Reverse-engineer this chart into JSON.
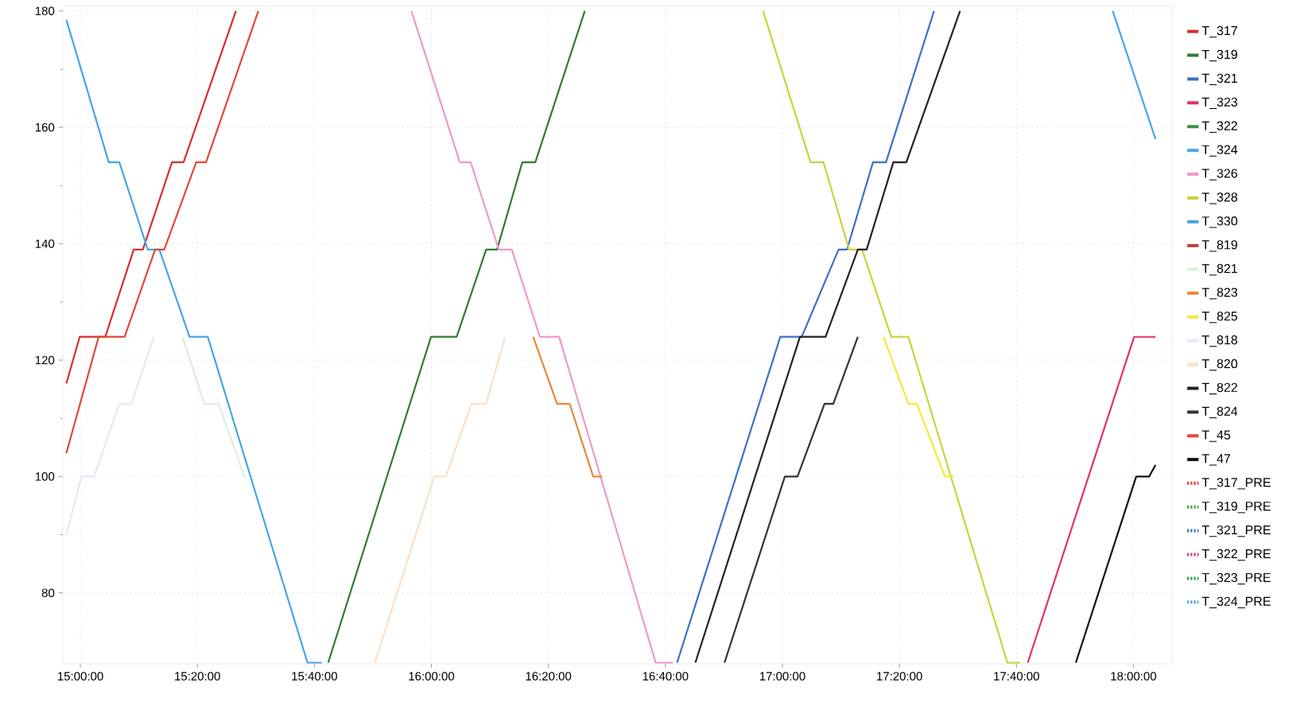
{
  "chart_data": {
    "type": "line",
    "xlim": [
      14.95,
      18.11
    ],
    "ylim": [
      67.8,
      180.8
    ],
    "xticks": [
      {
        "value": 15,
        "label": "15:00:00"
      },
      {
        "value": 15.3333,
        "label": "15:20:00"
      },
      {
        "value": 15.6667,
        "label": "15:40:00"
      },
      {
        "value": 16,
        "label": "16:00:00"
      },
      {
        "value": 16.3333,
        "label": "16:20:00"
      },
      {
        "value": 16.6667,
        "label": "16:40:00"
      },
      {
        "value": 17,
        "label": "17:00:00"
      },
      {
        "value": 17.3333,
        "label": "17:20:00"
      },
      {
        "value": 17.6667,
        "label": "17:40:00"
      },
      {
        "value": 18,
        "label": "18:00:00"
      }
    ],
    "yticks": [
      80,
      100,
      120,
      140,
      160,
      180
    ],
    "grid": true,
    "legend": "right",
    "line_style": "solid",
    "series": [
      {
        "name": "T_317",
        "color": "#d62f2f",
        "x": [
          14.96,
          14.998,
          15.071,
          15.152,
          15.178,
          15.261,
          15.294,
          15.443
        ],
        "values": [
          116,
          124,
          124,
          139,
          139,
          154,
          154,
          180
        ]
      },
      {
        "name": "T_319",
        "color": "#2e7d32",
        "x": [
          15.706,
          15.999,
          16.072,
          16.156,
          16.187,
          16.259,
          16.296,
          16.437
        ],
        "values": [
          68,
          124,
          124,
          139,
          139,
          154,
          154,
          180
        ]
      },
      {
        "name": "T_321",
        "color": "#3a72c4",
        "x": [
          16.7,
          16.994,
          17.055,
          17.16,
          17.184,
          17.258,
          17.295,
          17.432
        ],
        "values": [
          68,
          124,
          124,
          139,
          139,
          154,
          154,
          180
        ]
      },
      {
        "name": "T_323",
        "color": "#e0306f",
        "x": [
          17.699,
          18.002,
          18.063
        ],
        "values": [
          68,
          124,
          124
        ]
      },
      {
        "name": "T_322",
        "color": "#3a8f4a"
      },
      {
        "name": "T_324",
        "color": "#45a5e8",
        "x": [
          17.941,
          18.063
        ],
        "values": [
          180,
          158
        ]
      },
      {
        "name": "T_326",
        "color": "#ee99cc",
        "x": [
          15.943,
          16.081,
          16.112,
          16.192,
          16.229,
          16.309,
          16.364,
          16.639,
          16.688
        ],
        "values": [
          180,
          154,
          154,
          139,
          139,
          124,
          124,
          68,
          68
        ]
      },
      {
        "name": "T_328",
        "color": "#c8d43c",
        "x": [
          16.945,
          17.08,
          17.117,
          17.19,
          17.227,
          17.31,
          17.359,
          17.641,
          17.677
        ],
        "values": [
          180,
          154,
          154,
          139,
          139,
          124,
          124,
          68,
          68
        ]
      },
      {
        "name": "T_330",
        "color": "#45a5e8",
        "x": [
          14.96,
          15.081,
          15.111,
          15.192,
          15.225,
          15.311,
          15.363,
          15.647,
          15.688
        ],
        "values": [
          178.5,
          154,
          154,
          139,
          139,
          124,
          124,
          68,
          68
        ]
      },
      {
        "name": "T_819",
        "color": "#b5443b"
      },
      {
        "name": "T_821",
        "color": "#d8f0dc",
        "x": [
          15.291,
          15.353,
          15.394,
          15.467
        ],
        "values": [
          124,
          112.5,
          112.5,
          100
        ]
      },
      {
        "name": "T_823",
        "color": "#e8873a",
        "x": [
          16.29,
          16.358,
          16.394,
          16.461,
          16.486
        ],
        "values": [
          124,
          112.5,
          112.5,
          100,
          100
        ]
      },
      {
        "name": "T_825",
        "color": "#f2ea38",
        "x": [
          17.288,
          17.359,
          17.383,
          17.463,
          17.488
        ],
        "values": [
          124,
          112.5,
          112.5,
          100,
          100
        ]
      },
      {
        "name": "T_818",
        "color": "#e6e8f4",
        "x": [
          14.96,
          15.003,
          15.039,
          15.111,
          15.145,
          15.209
        ],
        "values": [
          90,
          100,
          100,
          112.5,
          112.5,
          124
        ]
      },
      {
        "name": "T_820",
        "color": "#fbe0c8",
        "x": [
          15.839,
          16.008,
          16.041,
          16.114,
          16.156,
          16.21
        ],
        "values": [
          68,
          100,
          100,
          112.5,
          112.5,
          124
        ]
      },
      {
        "name": "T_822",
        "color": "#222222",
        "x": [
          16.752,
          17.05,
          17.123,
          17.215,
          17.24,
          17.316,
          17.353,
          17.506
        ],
        "values": [
          68,
          124,
          124,
          139,
          139,
          154,
          154,
          180
        ]
      },
      {
        "name": "T_824",
        "color": "#333333",
        "x": [
          16.835,
          17.007,
          17.043,
          17.12,
          17.145,
          17.215
        ],
        "values": [
          68,
          100,
          100,
          112.5,
          112.5,
          124
        ]
      },
      {
        "name": "T_45",
        "color": "#e04838",
        "x": [
          14.96,
          15.052,
          15.126,
          15.213,
          15.239,
          15.33,
          15.358,
          15.507
        ],
        "values": [
          104,
          124,
          124,
          139,
          139,
          154,
          154,
          180
        ]
      },
      {
        "name": "T_47",
        "color": "#111111",
        "x": [
          17.836,
          18.008,
          18.045,
          18.063
        ],
        "values": [
          68,
          100,
          100,
          102
        ]
      },
      {
        "name": "T_317_PRE",
        "color": "#e53935",
        "line_style": "dotted"
      },
      {
        "name": "T_319_PRE",
        "color": "#43a047",
        "line_style": "dotted"
      },
      {
        "name": "T_321_PRE",
        "color": "#3a72c4",
        "line_style": "dotted"
      },
      {
        "name": "T_322_PRE",
        "color": "#d63384",
        "line_style": "dotted"
      },
      {
        "name": "T_323_PRE",
        "color": "#2e9e3e",
        "line_style": "dotted"
      },
      {
        "name": "T_324_PRE",
        "color": "#45a5e8",
        "line_style": "dotted"
      }
    ]
  }
}
